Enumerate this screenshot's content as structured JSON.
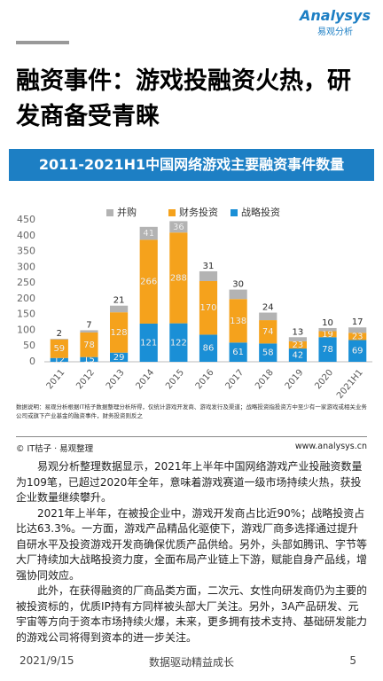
{
  "logo": {
    "name": "Analysys",
    "cn": "易观分析"
  },
  "header": {
    "title": "融资事件：游戏投融资火热，研发商备受青睐"
  },
  "chart_data": {
    "type": "stacked-bar",
    "title": "2011-2021H1中国网络游戏主要融资事件数量",
    "categories": [
      "2011",
      "2012",
      "2013",
      "2014",
      "2015",
      "2016",
      "2017",
      "2018",
      "2019",
      "2020",
      "2021H1"
    ],
    "series": [
      {
        "name": "战略投资",
        "color": "#1a8fd6",
        "values": [
          12,
          15,
          29,
          121,
          122,
          86,
          61,
          58,
          42,
          78,
          69
        ]
      },
      {
        "name": "财务投资",
        "color": "#f5a21c",
        "values": [
          59,
          78,
          128,
          266,
          288,
          170,
          138,
          74,
          23,
          19,
          23
        ]
      },
      {
        "name": "并购",
        "color": "#b3b3b3",
        "values": [
          2,
          7,
          21,
          41,
          36,
          31,
          30,
          24,
          13,
          10,
          17
        ]
      }
    ],
    "legend_order": [
      2,
      1,
      0
    ],
    "ylim": [
      0,
      450
    ],
    "yticks": [
      0,
      50,
      100,
      150,
      200,
      250,
      300,
      350,
      400,
      450
    ],
    "note": "数据说明：易观分析根据IT桔子数据整理分析所得，仅统计游戏开发商、游戏发行及渠道；战略投资指投资方中至少有一家游戏或相关业务公司或旗下产业基金的融资事件，财务投资则反之",
    "source": "© IT桔子 · 易观整理",
    "website": "www.analysys.cn"
  },
  "body": {
    "paragraphs": [
      "易观分析整理数据显示，2021年上半年中国网络游戏产业投融资数量为109笔，已超过2020年全年，意味着游戏赛道一级市场持续火热，获投企业数量继续攀升。",
      "2021年上半年，在被投企业中，游戏开发商占比近90%；战略投资占比达63.3%。一方面，游戏产品精品化驱使下，游戏厂商多选择通过提升自研水平及投资游戏开发商确保优质产品供给。另外，头部如腾讯、字节等大厂持续加大战略投资力度，全面布局产业链上下游，赋能自身产品线，增强协同效应。",
      "此外，在获得融资的厂商品类方面，二次元、女性向研发商仍为主要的被投资标的，优质IP持有方同样被头部大厂关注。另外，3A产品研发、元宇宙等方向于资本市场持续火爆，未来，更多拥有技术支持、基础研发能力的游戏公司将得到资本的进一步关注。"
    ]
  },
  "footer": {
    "date": "2021/9/15",
    "slogan": "数据驱动精益成长",
    "page": "5"
  }
}
